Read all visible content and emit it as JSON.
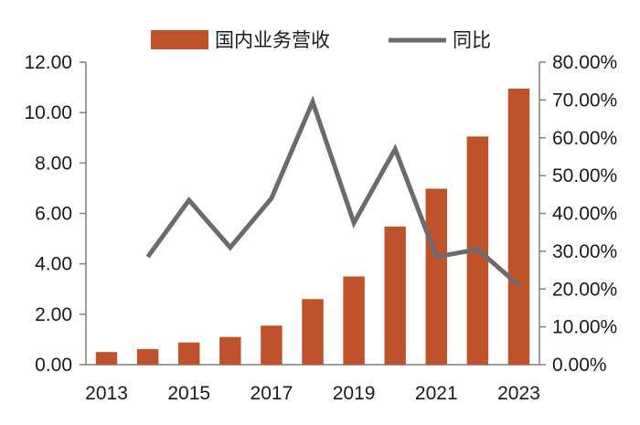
{
  "chart_data": {
    "type": "bar",
    "years": [
      2013,
      2014,
      2015,
      2016,
      2017,
      2018,
      2019,
      2020,
      2021,
      2022,
      2023
    ],
    "x_tick_labels": [
      "2013",
      "2015",
      "2017",
      "2019",
      "2021",
      "2023"
    ],
    "series": [
      {
        "name": "国内业务营收",
        "kind": "bar",
        "axis": "left",
        "color": "#C0522B",
        "values": [
          0.5,
          0.62,
          0.88,
          1.1,
          1.55,
          2.6,
          3.5,
          5.48,
          6.98,
          9.05,
          10.95
        ]
      },
      {
        "name": "同比",
        "kind": "line",
        "axis": "right",
        "color": "#6B6B6B",
        "values": [
          null,
          28.5,
          43.5,
          31.0,
          44.0,
          69.5,
          37.5,
          57.0,
          28.5,
          30.5,
          21.0
        ]
      }
    ],
    "left_axis": {
      "ylim": [
        0,
        12
      ],
      "ticks": [
        0,
        2,
        4,
        6,
        8,
        10,
        12
      ],
      "tick_labels": [
        "0.00",
        "2.00",
        "4.00",
        "6.00",
        "8.00",
        "10.00",
        "12.00"
      ]
    },
    "right_axis": {
      "ylim": [
        0,
        80
      ],
      "ticks": [
        0,
        10,
        20,
        30,
        40,
        50,
        60,
        70,
        80
      ],
      "tick_labels": [
        "0.00%",
        "10.00%",
        "20.00%",
        "30.00%",
        "40.00%",
        "50.00%",
        "60.00%",
        "70.00%",
        "80.00%"
      ]
    },
    "legend_position": "top",
    "grid": false
  }
}
